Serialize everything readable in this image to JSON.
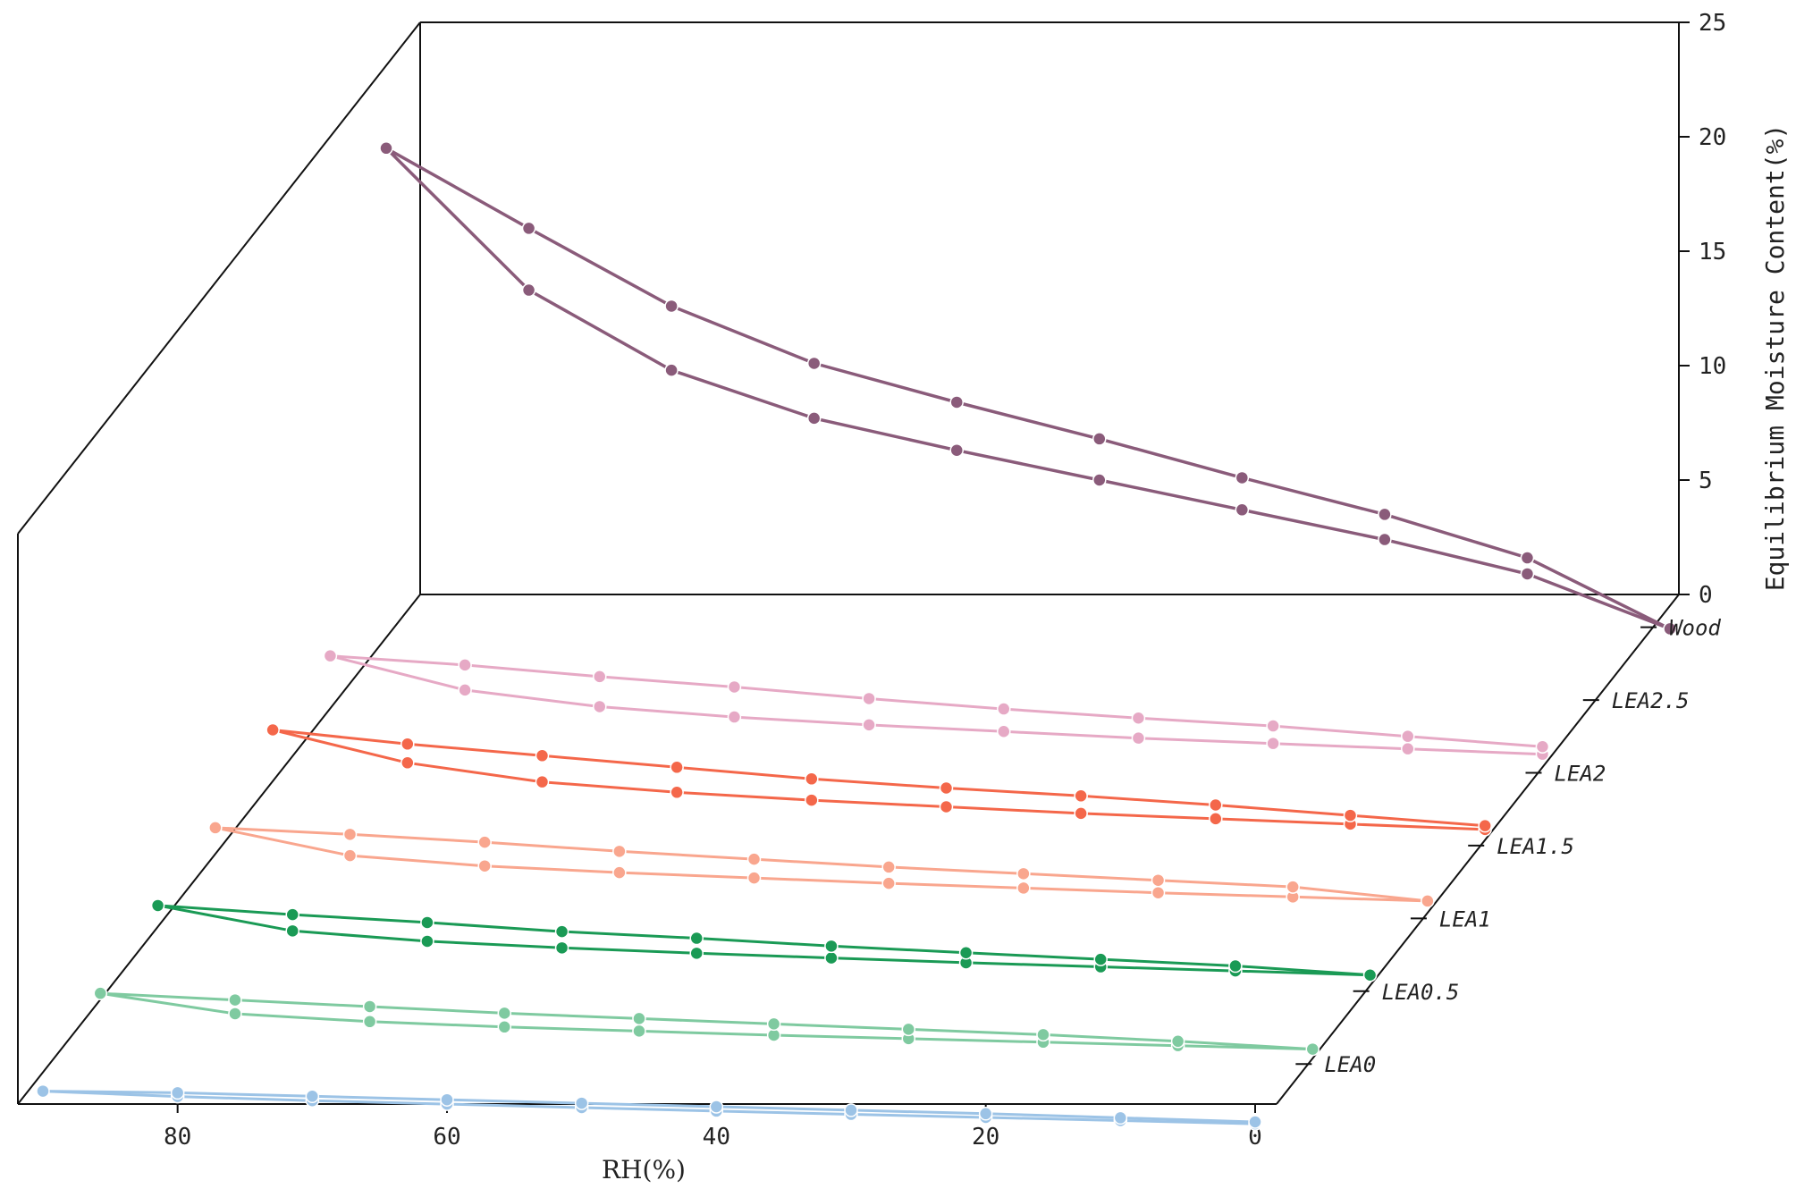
{
  "chart_data": {
    "type": "line",
    "title": "",
    "xlabel": "RH(%)",
    "zlabel": "Equilibrium Moisture Content(%)",
    "xlim": [
      0,
      90
    ],
    "zlim": [
      0,
      25
    ],
    "x_ticks": [
      "80",
      "60",
      "40",
      "20",
      "0"
    ],
    "z_ticks": [
      "0",
      "5",
      "10",
      "15",
      "20",
      "25"
    ],
    "grid": false,
    "x_values": [
      90,
      80,
      70,
      60,
      50,
      40,
      30,
      20,
      10,
      0
    ],
    "series": [
      {
        "name": "LEA0",
        "color": "#9cc3e6",
        "adsorption": [
          0.6,
          0.4,
          0.3,
          0.25,
          0.2,
          0.15,
          0.12,
          0.1,
          0.08,
          0.05
        ],
        "desorption": [
          0.6,
          0.7,
          0.65,
          0.6,
          0.55,
          0.5,
          0.45,
          0.4,
          0.3,
          0.2
        ]
      },
      {
        "name": "LEA0.5",
        "color": "#7fcaa0",
        "adsorption": [
          2.6,
          1.2,
          0.8,
          0.6,
          0.5,
          0.4,
          0.35,
          0.3,
          0.25,
          0.2
        ],
        "desorption": [
          2.6,
          2.3,
          2.0,
          1.7,
          1.5,
          1.3,
          1.1,
          0.9,
          0.6,
          0.2
        ]
      },
      {
        "name": "LEA1",
        "color": "#1a9a55",
        "adsorption": [
          3.8,
          2.0,
          1.4,
          1.1,
          0.9,
          0.75,
          0.6,
          0.5,
          0.4,
          0.3
        ],
        "desorption": [
          3.8,
          3.3,
          2.9,
          2.4,
          2.1,
          1.7,
          1.4,
          1.1,
          0.8,
          0.3
        ]
      },
      {
        "name": "LEA1.5",
        "color": "#f9a68e",
        "adsorption": [
          4.2,
          2.2,
          1.6,
          1.3,
          1.1,
          0.9,
          0.75,
          0.6,
          0.5,
          0.4
        ],
        "desorption": [
          4.2,
          3.9,
          3.5,
          3.0,
          2.6,
          2.2,
          1.9,
          1.6,
          1.3,
          0.4
        ]
      },
      {
        "name": "LEA2",
        "color": "#f4674a",
        "adsorption": [
          6.2,
          3.8,
          2.5,
          1.9,
          1.5,
          1.2,
          0.9,
          0.7,
          0.5,
          0.3
        ],
        "desorption": [
          6.2,
          5.3,
          4.6,
          3.9,
          3.2,
          2.7,
          2.3,
          1.8,
          1.2,
          0.6
        ]
      },
      {
        "name": "LEA2.5",
        "color": "#e6a9c5",
        "adsorption": [
          6.3,
          3.8,
          2.7,
          2.1,
          1.7,
          1.4,
          1.1,
          0.9,
          0.7,
          0.5
        ],
        "desorption": [
          6.3,
          5.8,
          5.1,
          4.5,
          3.8,
          3.2,
          2.7,
          2.3,
          1.7,
          1.1
        ]
      },
      {
        "name": "Wood",
        "color": "#8a5b7a",
        "adsorption": [
          19.5,
          13.3,
          9.8,
          7.7,
          6.3,
          5.0,
          3.7,
          2.4,
          0.9,
          -1.5
        ],
        "desorption": [
          19.5,
          16.0,
          12.6,
          10.1,
          8.4,
          6.8,
          5.1,
          3.5,
          1.6,
          -1.5
        ]
      }
    ]
  }
}
